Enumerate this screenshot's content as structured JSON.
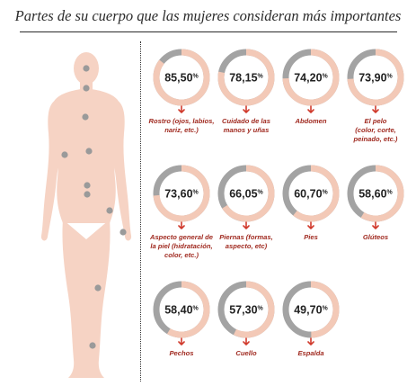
{
  "header": {
    "title": "Partes de su cuerpo que las mujeres consideran más importantes"
  },
  "colors": {
    "ring_main": "#f3c9b7",
    "ring_rest": "#a3a3a3",
    "body": "#f6d3c4",
    "dot": "#9a9a9a",
    "arrow": "#d03a2c",
    "text": "#222222",
    "label_text": "#a02a20"
  },
  "chart_data": {
    "type": "donut",
    "title": "Partes de su cuerpo que las mujeres consideran más importantes",
    "unit": "%",
    "items": [
      {
        "value_label": "85,50",
        "value": 85.5,
        "label": [
          "Rostro (ojos, labios,",
          "nariz, etc.)"
        ]
      },
      {
        "value_label": "78,15",
        "value": 78.15,
        "label": [
          "Cuidado de las",
          "manos y uñas"
        ]
      },
      {
        "value_label": "74,20",
        "value": 74.2,
        "label": [
          "Abdomen"
        ]
      },
      {
        "value_label": "73,90",
        "value": 73.9,
        "label": [
          "El pelo",
          "(color, corte,",
          "peinado, etc.)"
        ]
      },
      {
        "value_label": "73,60",
        "value": 73.6,
        "label": [
          "Aspecto general de",
          "la piel (hidratación,",
          "color, etc.)"
        ]
      },
      {
        "value_label": "66,05",
        "value": 66.05,
        "label": [
          "Piernas (formas,",
          "aspecto, etc)"
        ]
      },
      {
        "value_label": "60,70",
        "value": 60.7,
        "label": [
          "Pies"
        ]
      },
      {
        "value_label": "58,60",
        "value": 58.6,
        "label": [
          "Glúteos"
        ]
      },
      {
        "value_label": "58,40",
        "value": 58.4,
        "label": [
          "Pechos"
        ]
      },
      {
        "value_label": "57,30",
        "value": 57.3,
        "label": [
          "Cuello"
        ]
      },
      {
        "value_label": "49,70",
        "value": 49.7,
        "label": [
          "Espalda"
        ]
      }
    ]
  }
}
